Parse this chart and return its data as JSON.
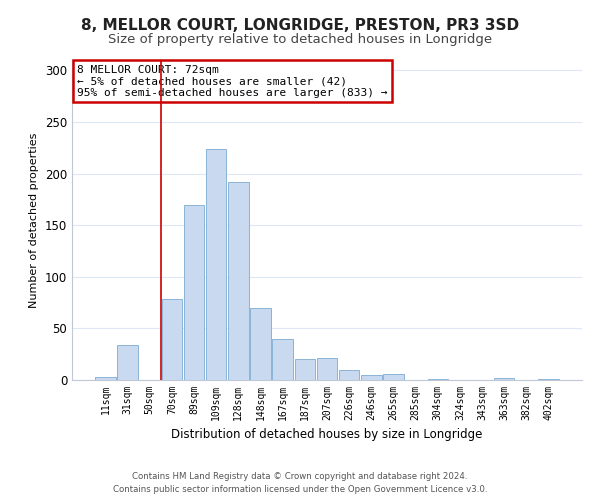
{
  "title": "8, MELLOR COURT, LONGRIDGE, PRESTON, PR3 3SD",
  "subtitle": "Size of property relative to detached houses in Longridge",
  "xlabel": "Distribution of detached houses by size in Longridge",
  "ylabel": "Number of detached properties",
  "bar_labels": [
    "11sqm",
    "31sqm",
    "50sqm",
    "70sqm",
    "89sqm",
    "109sqm",
    "128sqm",
    "148sqm",
    "167sqm",
    "187sqm",
    "207sqm",
    "226sqm",
    "246sqm",
    "265sqm",
    "285sqm",
    "304sqm",
    "324sqm",
    "343sqm",
    "363sqm",
    "382sqm",
    "402sqm"
  ],
  "bar_values": [
    3,
    34,
    0,
    78,
    170,
    224,
    192,
    70,
    40,
    20,
    21,
    10,
    5,
    6,
    0,
    1,
    0,
    0,
    2,
    0,
    1
  ],
  "bar_color": "#c9d9f0",
  "bar_edge_color": "#8ab4d8",
  "annotation_title": "8 MELLOR COURT: 72sqm",
  "annotation_line1": "← 5% of detached houses are smaller (42)",
  "annotation_line2": "95% of semi-detached houses are larger (833) →",
  "annotation_box_color": "#ffffff",
  "annotation_box_edge": "#cc0000",
  "vline_x": 3,
  "ylim": [
    0,
    310
  ],
  "yticks": [
    0,
    50,
    100,
    150,
    200,
    250,
    300
  ],
  "footer1": "Contains HM Land Registry data © Crown copyright and database right 2024.",
  "footer2": "Contains public sector information licensed under the Open Government Licence v3.0.",
  "background_color": "#ffffff",
  "grid_color": "#dce8f5",
  "title_fontsize": 11,
  "subtitle_fontsize": 9.5,
  "tick_fontsize": 7,
  "ylabel_fontsize": 8,
  "xlabel_fontsize": 8.5
}
